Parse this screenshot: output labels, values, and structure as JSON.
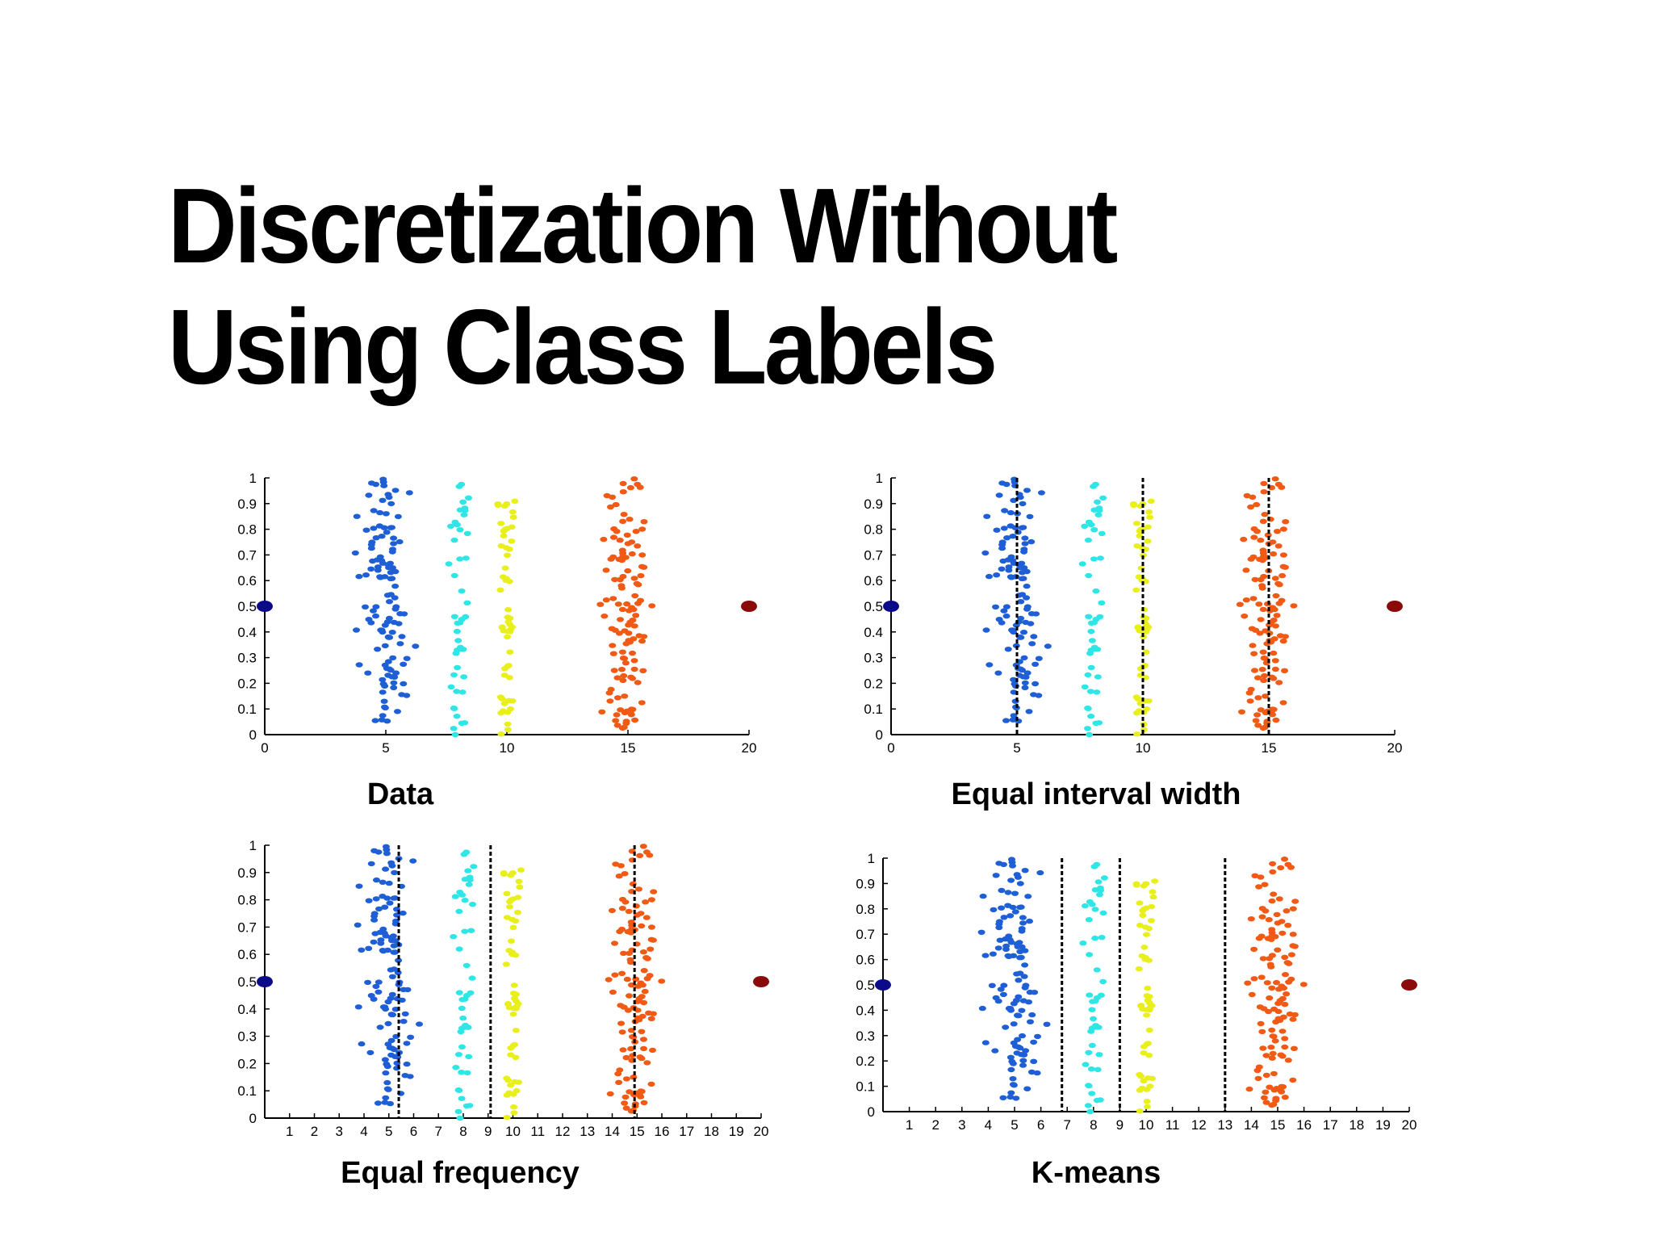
{
  "slide": {
    "title_line1": "Discretization Without",
    "title_line2": "Using Class Labels"
  },
  "colors": {
    "cluster1": "#1f5fd6",
    "cluster2": "#2ee6e6",
    "cluster3": "#e8ef1a",
    "cluster4": "#f05a14",
    "outlier_left": "#0a0a8a",
    "outlier_right": "#8b0a0a",
    "split_line": "#000000"
  },
  "chart_data": [
    {
      "type": "scatter",
      "caption": "Data",
      "xlim": [
        0,
        20
      ],
      "ylim": [
        0,
        1
      ],
      "xticks": [
        "0",
        "5",
        "10",
        "15",
        "20"
      ],
      "yticks": [
        "0",
        "0.1",
        "0.2",
        "0.3",
        "0.4",
        "0.5",
        "0.6",
        "0.7",
        "0.8",
        "0.9",
        "1"
      ],
      "splits": [],
      "clusters": [
        {
          "center_x": 5,
          "spread_x": 1.2,
          "y_range": [
            0.05,
            1.0
          ],
          "count": 120
        },
        {
          "center_x": 8,
          "spread_x": 0.6,
          "y_range": [
            0.0,
            0.98
          ],
          "count": 45
        },
        {
          "center_x": 10,
          "spread_x": 0.5,
          "y_range": [
            0.0,
            0.91
          ],
          "count": 55
        },
        {
          "center_x": 15,
          "spread_x": 1.2,
          "y_range": [
            0.02,
            1.0
          ],
          "count": 120
        }
      ],
      "outliers": [
        {
          "x": 0,
          "y": 0.5
        },
        {
          "x": 20,
          "y": 0.5
        }
      ]
    },
    {
      "type": "scatter",
      "caption": "Equal interval width",
      "xlim": [
        0,
        20
      ],
      "ylim": [
        0,
        1
      ],
      "xticks": [
        "0",
        "5",
        "10",
        "15",
        "20"
      ],
      "yticks": [
        "0",
        "0.1",
        "0.2",
        "0.3",
        "0.4",
        "0.5",
        "0.6",
        "0.7",
        "0.8",
        "0.9",
        "1"
      ],
      "splits": [
        5,
        10,
        15
      ],
      "clusters": [
        {
          "center_x": 5,
          "spread_x": 1.2,
          "y_range": [
            0.05,
            1.0
          ],
          "count": 120
        },
        {
          "center_x": 8,
          "spread_x": 0.6,
          "y_range": [
            0.0,
            0.98
          ],
          "count": 45
        },
        {
          "center_x": 10,
          "spread_x": 0.5,
          "y_range": [
            0.0,
            0.91
          ],
          "count": 55
        },
        {
          "center_x": 15,
          "spread_x": 1.2,
          "y_range": [
            0.02,
            1.0
          ],
          "count": 120
        }
      ],
      "outliers": [
        {
          "x": 0,
          "y": 0.5
        },
        {
          "x": 20,
          "y": 0.5
        }
      ]
    },
    {
      "type": "scatter",
      "caption": "Equal frequency",
      "xlim": [
        0,
        20
      ],
      "ylim": [
        0,
        1
      ],
      "xticks": [
        "1",
        "2",
        "3",
        "4",
        "5",
        "6",
        "7",
        "8",
        "9",
        "10",
        "11",
        "12",
        "13",
        "14",
        "15",
        "16",
        "17",
        "18",
        "19",
        "20"
      ],
      "yticks": [
        "0",
        "0.1",
        "0.2",
        "0.3",
        "0.4",
        "0.5",
        "0.6",
        "0.7",
        "0.8",
        "0.9",
        "1"
      ],
      "splits": [
        5.4,
        9.1,
        14.9
      ],
      "clusters": [
        {
          "center_x": 5,
          "spread_x": 1.2,
          "y_range": [
            0.05,
            1.0
          ],
          "count": 120
        },
        {
          "center_x": 8,
          "spread_x": 0.6,
          "y_range": [
            0.0,
            0.98
          ],
          "count": 45
        },
        {
          "center_x": 10,
          "spread_x": 0.5,
          "y_range": [
            0.0,
            0.91
          ],
          "count": 55
        },
        {
          "center_x": 15,
          "spread_x": 1.2,
          "y_range": [
            0.02,
            1.0
          ],
          "count": 120
        }
      ],
      "outliers": [
        {
          "x": 0,
          "y": 0.5
        },
        {
          "x": 20,
          "y": 0.5
        }
      ]
    },
    {
      "type": "scatter",
      "caption": "K-means",
      "xlim": [
        0,
        20
      ],
      "ylim": [
        0,
        1
      ],
      "xticks": [
        "1",
        "2",
        "3",
        "4",
        "5",
        "6",
        "7",
        "8",
        "9",
        "10",
        "11",
        "12",
        "13",
        "14",
        "15",
        "16",
        "17",
        "18",
        "19",
        "20"
      ],
      "yticks": [
        "0",
        "0.1",
        "0.2",
        "0.3",
        "0.4",
        "0.5",
        "0.6",
        "0.7",
        "0.8",
        "0.9",
        "1"
      ],
      "splits": [
        6.8,
        9.0,
        13.0
      ],
      "clusters": [
        {
          "center_x": 5,
          "spread_x": 1.2,
          "y_range": [
            0.05,
            1.0
          ],
          "count": 120
        },
        {
          "center_x": 8,
          "spread_x": 0.6,
          "y_range": [
            0.0,
            0.98
          ],
          "count": 45
        },
        {
          "center_x": 10,
          "spread_x": 0.5,
          "y_range": [
            0.0,
            0.91
          ],
          "count": 55
        },
        {
          "center_x": 15,
          "spread_x": 1.2,
          "y_range": [
            0.02,
            1.0
          ],
          "count": 120
        }
      ],
      "outliers": [
        {
          "x": 0,
          "y": 0.5
        },
        {
          "x": 20,
          "y": 0.5
        }
      ]
    }
  ]
}
